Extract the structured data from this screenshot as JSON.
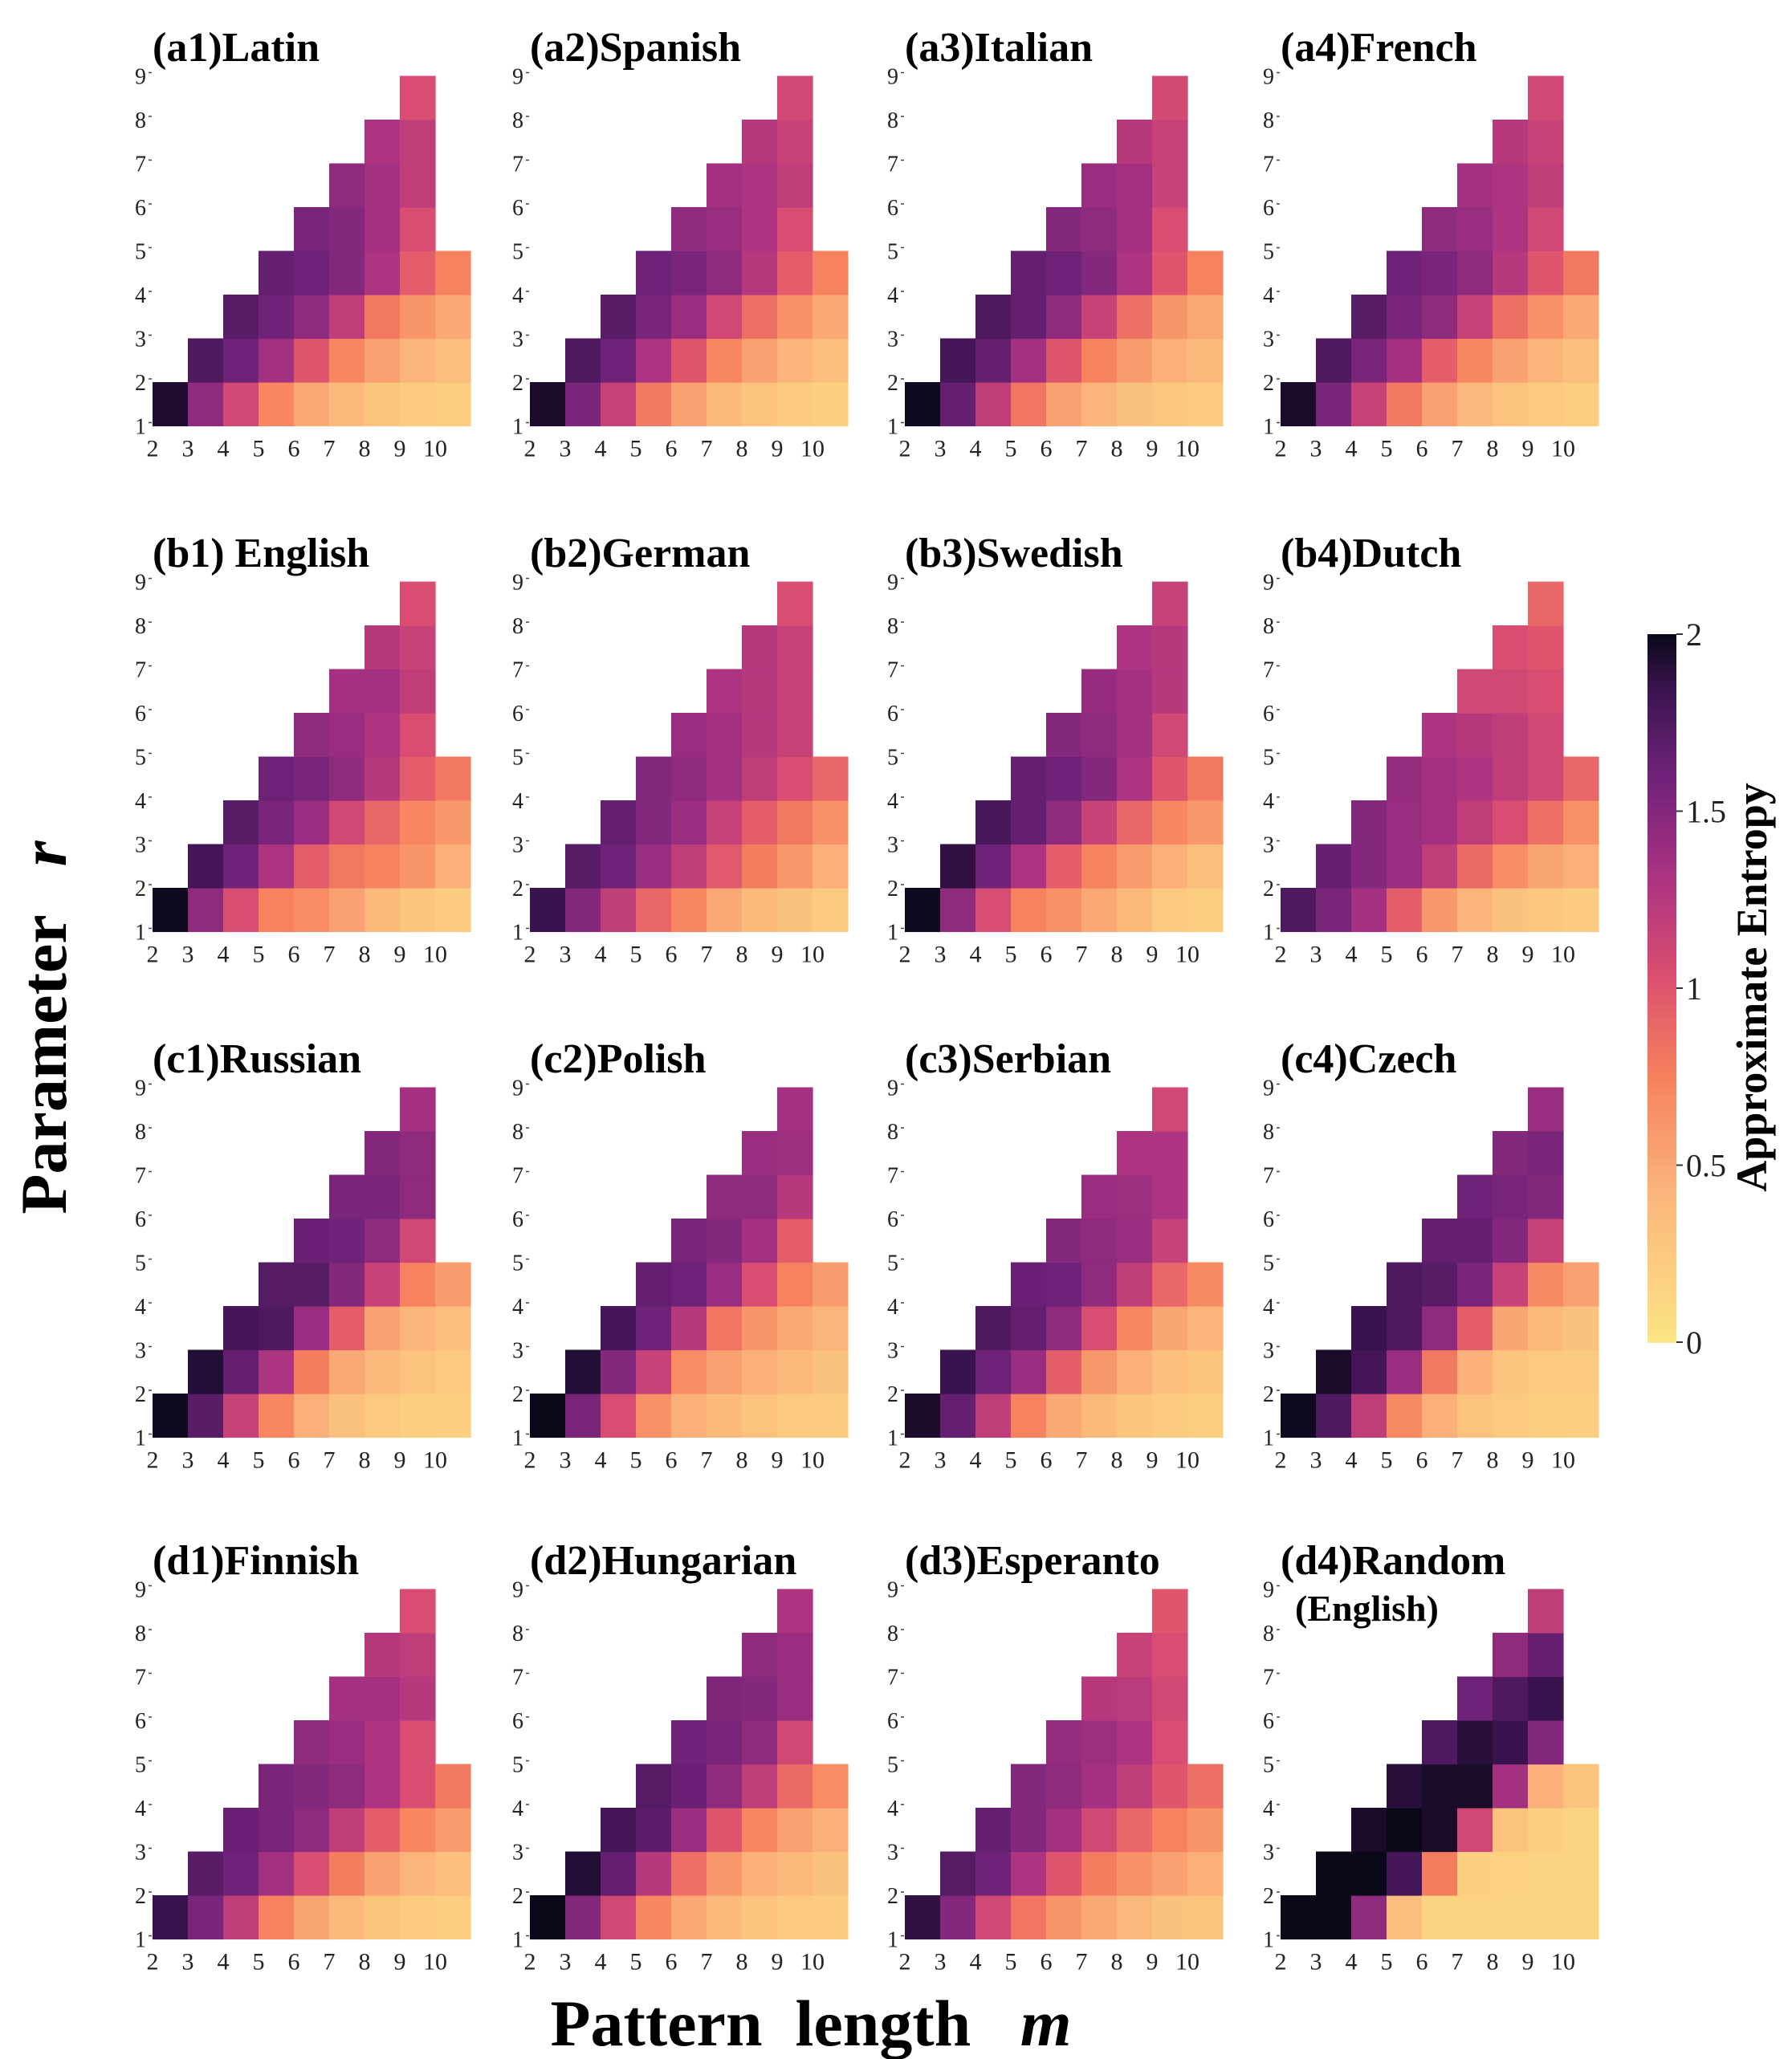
{
  "chart_data": {
    "type": "heatmap",
    "description_axes": {
      "x": "m",
      "y": "r"
    },
    "xlabel": "Pattern  length   ",
    "xlabel_var": "m",
    "ylabel": "Parameter   ",
    "ylabel_var": "r",
    "x_ticks": [
      "2",
      "3",
      "4",
      "5",
      "6",
      "7",
      "8",
      "9",
      "10"
    ],
    "y_ticks": [
      "1",
      "2",
      "3",
      "4",
      "5",
      "6",
      "7",
      "8",
      "9"
    ],
    "colorbar": {
      "label": "Approximate Entropy",
      "min": 0,
      "max": 2,
      "ticks": [
        "0",
        "0.5",
        "1",
        "1.5",
        "2"
      ],
      "tick_values": [
        0,
        0.5,
        1,
        1.5,
        2
      ],
      "colormap": "magma_r"
    },
    "panels": [
      {
        "id": "a1",
        "title": "(a1)Latin",
        "grid": [
          [
            1.93,
            1.45,
            1.1,
            0.72,
            0.5,
            0.38,
            0.28,
            0.22,
            0.2
          ],
          [
            1.75,
            1.6,
            1.35,
            1.0,
            0.72,
            0.55,
            0.42,
            0.35
          ],
          [
            1.7,
            1.6,
            1.45,
            1.2,
            0.8,
            0.62,
            0.5
          ],
          [
            1.65,
            1.6,
            1.5,
            1.3,
            0.95,
            0.75
          ],
          [
            1.55,
            1.5,
            1.35,
            1.05
          ],
          [
            1.45,
            1.35,
            1.2
          ],
          [
            1.3,
            1.2
          ],
          [
            1.05
          ]
        ]
      },
      {
        "id": "a2",
        "title": "(a2)Spanish",
        "grid": [
          [
            1.95,
            1.55,
            1.15,
            0.8,
            0.55,
            0.38,
            0.3,
            0.22,
            0.18
          ],
          [
            1.75,
            1.6,
            1.3,
            1.0,
            0.72,
            0.55,
            0.42,
            0.35
          ],
          [
            1.7,
            1.55,
            1.4,
            1.1,
            0.85,
            0.65,
            0.5
          ],
          [
            1.6,
            1.55,
            1.45,
            1.25,
            0.95,
            0.75
          ],
          [
            1.45,
            1.4,
            1.3,
            1.05
          ],
          [
            1.35,
            1.3,
            1.2
          ],
          [
            1.25,
            1.15
          ],
          [
            1.1
          ]
        ]
      },
      {
        "id": "a3",
        "title": "(a3)Italian",
        "grid": [
          [
            1.98,
            1.65,
            1.2,
            0.82,
            0.55,
            0.42,
            0.32,
            0.26,
            0.22
          ],
          [
            1.8,
            1.65,
            1.35,
            1.0,
            0.75,
            0.58,
            0.45,
            0.38
          ],
          [
            1.75,
            1.65,
            1.45,
            1.15,
            0.85,
            0.62,
            0.5
          ],
          [
            1.65,
            1.6,
            1.5,
            1.3,
            1.0,
            0.75
          ],
          [
            1.5,
            1.45,
            1.35,
            1.05
          ],
          [
            1.4,
            1.35,
            1.15
          ],
          [
            1.25,
            1.15
          ],
          [
            1.08
          ]
        ]
      },
      {
        "id": "a4",
        "title": "(a4)French",
        "grid": [
          [
            1.95,
            1.55,
            1.15,
            0.8,
            0.55,
            0.4,
            0.3,
            0.25,
            0.2
          ],
          [
            1.75,
            1.55,
            1.35,
            0.95,
            0.72,
            0.55,
            0.42,
            0.35
          ],
          [
            1.7,
            1.55,
            1.45,
            1.15,
            0.85,
            0.65,
            0.5
          ],
          [
            1.6,
            1.55,
            1.45,
            1.25,
            1.0,
            0.8
          ],
          [
            1.45,
            1.4,
            1.3,
            1.1
          ],
          [
            1.35,
            1.3,
            1.2
          ],
          [
            1.25,
            1.15
          ],
          [
            1.1
          ]
        ]
      },
      {
        "id": "b1",
        "title": "(b1) English",
        "grid": [
          [
            1.98,
            1.45,
            1.05,
            0.75,
            0.68,
            0.55,
            0.38,
            0.28,
            0.22
          ],
          [
            1.8,
            1.6,
            1.3,
            0.95,
            0.8,
            0.75,
            0.62,
            0.45
          ],
          [
            1.7,
            1.55,
            1.4,
            1.1,
            0.9,
            0.72,
            0.6
          ],
          [
            1.6,
            1.55,
            1.45,
            1.25,
            0.95,
            0.8
          ],
          [
            1.45,
            1.4,
            1.3,
            1.05
          ],
          [
            1.35,
            1.35,
            1.2
          ],
          [
            1.25,
            1.15
          ],
          [
            1.05
          ]
        ]
      },
      {
        "id": "b2",
        "title": "(b2)German",
        "grid": [
          [
            1.85,
            1.5,
            1.2,
            0.9,
            0.72,
            0.5,
            0.38,
            0.32,
            0.25
          ],
          [
            1.7,
            1.6,
            1.4,
            1.2,
            0.98,
            0.78,
            0.6,
            0.45
          ],
          [
            1.65,
            1.5,
            1.4,
            1.15,
            0.95,
            0.8,
            0.65
          ],
          [
            1.5,
            1.45,
            1.35,
            1.2,
            1.05,
            0.9
          ],
          [
            1.4,
            1.35,
            1.25,
            1.15
          ],
          [
            1.3,
            1.25,
            1.15
          ],
          [
            1.25,
            1.15
          ],
          [
            1.05
          ]
        ]
      },
      {
        "id": "b3",
        "title": "(b3)Swedish",
        "grid": [
          [
            1.98,
            1.45,
            1.05,
            0.75,
            0.65,
            0.5,
            0.38,
            0.25,
            0.2
          ],
          [
            1.88,
            1.6,
            1.3,
            0.95,
            0.75,
            0.58,
            0.45,
            0.35
          ],
          [
            1.78,
            1.65,
            1.45,
            1.15,
            0.9,
            0.72,
            0.6
          ],
          [
            1.65,
            1.6,
            1.5,
            1.3,
            1.0,
            0.8
          ],
          [
            1.5,
            1.45,
            1.35,
            1.1
          ],
          [
            1.42,
            1.35,
            1.25
          ],
          [
            1.3,
            1.25
          ],
          [
            1.15
          ]
        ]
      },
      {
        "id": "b4",
        "title": "(b4)Dutch",
        "grid": [
          [
            1.75,
            1.55,
            1.35,
            0.95,
            0.6,
            0.42,
            0.32,
            0.27,
            0.22
          ],
          [
            1.65,
            1.5,
            1.4,
            1.2,
            0.88,
            0.68,
            0.52,
            0.45
          ],
          [
            1.5,
            1.4,
            1.35,
            1.2,
            1.05,
            0.85,
            0.65
          ],
          [
            1.42,
            1.35,
            1.3,
            1.2,
            1.1,
            0.9
          ],
          [
            1.3,
            1.25,
            1.2,
            1.1
          ],
          [
            1.1,
            1.1,
            1.05
          ],
          [
            1.05,
            1.0
          ],
          [
            0.9
          ]
        ]
      },
      {
        "id": "c1",
        "title": "(c1)Russian",
        "grid": [
          [
            1.98,
            1.7,
            1.15,
            0.72,
            0.45,
            0.32,
            0.25,
            0.2,
            0.18
          ],
          [
            1.92,
            1.65,
            1.3,
            0.78,
            0.5,
            0.38,
            0.3,
            0.25
          ],
          [
            1.8,
            1.75,
            1.4,
            0.95,
            0.55,
            0.42,
            0.35
          ],
          [
            1.72,
            1.7,
            1.5,
            1.15,
            0.75,
            0.58
          ],
          [
            1.62,
            1.6,
            1.45,
            1.1
          ],
          [
            1.55,
            1.55,
            1.45
          ],
          [
            1.5,
            1.45
          ],
          [
            1.35
          ]
        ]
      },
      {
        "id": "c2",
        "title": "(c2)Polish",
        "grid": [
          [
            2.0,
            1.55,
            1.05,
            0.65,
            0.45,
            0.38,
            0.3,
            0.25,
            0.22
          ],
          [
            1.92,
            1.5,
            1.15,
            0.68,
            0.55,
            0.45,
            0.38,
            0.32
          ],
          [
            1.8,
            1.6,
            1.25,
            0.82,
            0.62,
            0.5,
            0.42
          ],
          [
            1.65,
            1.6,
            1.4,
            1.05,
            0.75,
            0.58
          ],
          [
            1.55,
            1.5,
            1.35,
            0.95
          ],
          [
            1.45,
            1.45,
            1.25
          ],
          [
            1.4,
            1.38
          ],
          [
            1.35
          ]
        ]
      },
      {
        "id": "c3",
        "title": "(c3)Serbian",
        "grid": [
          [
            1.95,
            1.65,
            1.2,
            0.75,
            0.5,
            0.38,
            0.28,
            0.22,
            0.2
          ],
          [
            1.85,
            1.6,
            1.4,
            0.95,
            0.6,
            0.45,
            0.35,
            0.28
          ],
          [
            1.75,
            1.65,
            1.45,
            1.05,
            0.72,
            0.52,
            0.42
          ],
          [
            1.62,
            1.6,
            1.45,
            1.2,
            0.9,
            0.7
          ],
          [
            1.5,
            1.45,
            1.4,
            1.15
          ],
          [
            1.4,
            1.38,
            1.3
          ],
          [
            1.3,
            1.3
          ],
          [
            1.1
          ]
        ]
      },
      {
        "id": "c4",
        "title": "(c4)Czech",
        "grid": [
          [
            1.98,
            1.75,
            1.2,
            0.7,
            0.45,
            0.3,
            0.25,
            0.2,
            0.18
          ],
          [
            1.95,
            1.8,
            1.4,
            0.8,
            0.45,
            0.3,
            0.25,
            0.22
          ],
          [
            1.85,
            1.75,
            1.45,
            0.95,
            0.52,
            0.38,
            0.32
          ],
          [
            1.75,
            1.7,
            1.55,
            1.15,
            0.7,
            0.55
          ],
          [
            1.65,
            1.65,
            1.5,
            1.15
          ],
          [
            1.6,
            1.55,
            1.5
          ],
          [
            1.5,
            1.55
          ],
          [
            1.4
          ]
        ]
      },
      {
        "id": "d1",
        "title": "(d1)Finnish",
        "grid": [
          [
            1.85,
            1.55,
            1.2,
            0.75,
            0.52,
            0.38,
            0.28,
            0.22,
            0.2
          ],
          [
            1.7,
            1.6,
            1.35,
            1.05,
            0.78,
            0.55,
            0.42,
            0.35
          ],
          [
            1.62,
            1.55,
            1.45,
            1.2,
            0.95,
            0.72,
            0.58
          ],
          [
            1.55,
            1.5,
            1.45,
            1.3,
            1.05,
            0.8
          ],
          [
            1.45,
            1.4,
            1.3,
            1.05
          ],
          [
            1.35,
            1.35,
            1.25
          ],
          [
            1.25,
            1.2
          ],
          [
            1.05
          ]
        ]
      },
      {
        "id": "d2",
        "title": "(d2)Hungarian",
        "grid": [
          [
            2.0,
            1.5,
            1.1,
            0.72,
            0.5,
            0.38,
            0.3,
            0.25,
            0.22
          ],
          [
            1.92,
            1.65,
            1.25,
            0.85,
            0.6,
            0.45,
            0.38,
            0.32
          ],
          [
            1.8,
            1.68,
            1.4,
            1.0,
            0.72,
            0.55,
            0.45
          ],
          [
            1.72,
            1.62,
            1.45,
            1.2,
            0.88,
            0.68
          ],
          [
            1.6,
            1.55,
            1.45,
            1.1
          ],
          [
            1.52,
            1.5,
            1.4
          ],
          [
            1.45,
            1.4
          ],
          [
            1.3
          ]
        ]
      },
      {
        "id": "d3",
        "title": "(d3)Esperanto",
        "grid": [
          [
            1.88,
            1.5,
            1.1,
            0.82,
            0.62,
            0.5,
            0.4,
            0.32,
            0.28
          ],
          [
            1.72,
            1.6,
            1.3,
            1.0,
            0.78,
            0.65,
            0.55,
            0.45
          ],
          [
            1.65,
            1.5,
            1.35,
            1.1,
            0.9,
            0.75,
            0.62
          ],
          [
            1.5,
            1.45,
            1.35,
            1.2,
            1.0,
            0.85
          ],
          [
            1.42,
            1.38,
            1.3,
            1.05
          ],
          [
            1.25,
            1.22,
            1.1
          ],
          [
            1.15,
            1.05
          ],
          [
            1.0
          ]
        ]
      },
      {
        "id": "d4",
        "title": "(d4)Random",
        "subtitle": "(English)",
        "grid": [
          [
            2.0,
            2.0,
            1.45,
            0.35,
            0.15,
            0.15,
            0.15,
            0.15,
            0.15
          ],
          [
            2.0,
            2.0,
            1.8,
            0.78,
            0.18,
            0.16,
            0.15,
            0.15
          ],
          [
            1.95,
            2.0,
            1.95,
            1.1,
            0.3,
            0.2,
            0.15
          ],
          [
            1.9,
            1.95,
            1.95,
            1.35,
            0.45,
            0.3
          ],
          [
            1.75,
            1.9,
            1.85,
            1.5
          ],
          [
            1.6,
            1.75,
            1.85
          ],
          [
            1.45,
            1.65
          ],
          [
            1.2
          ]
        ]
      }
    ]
  }
}
